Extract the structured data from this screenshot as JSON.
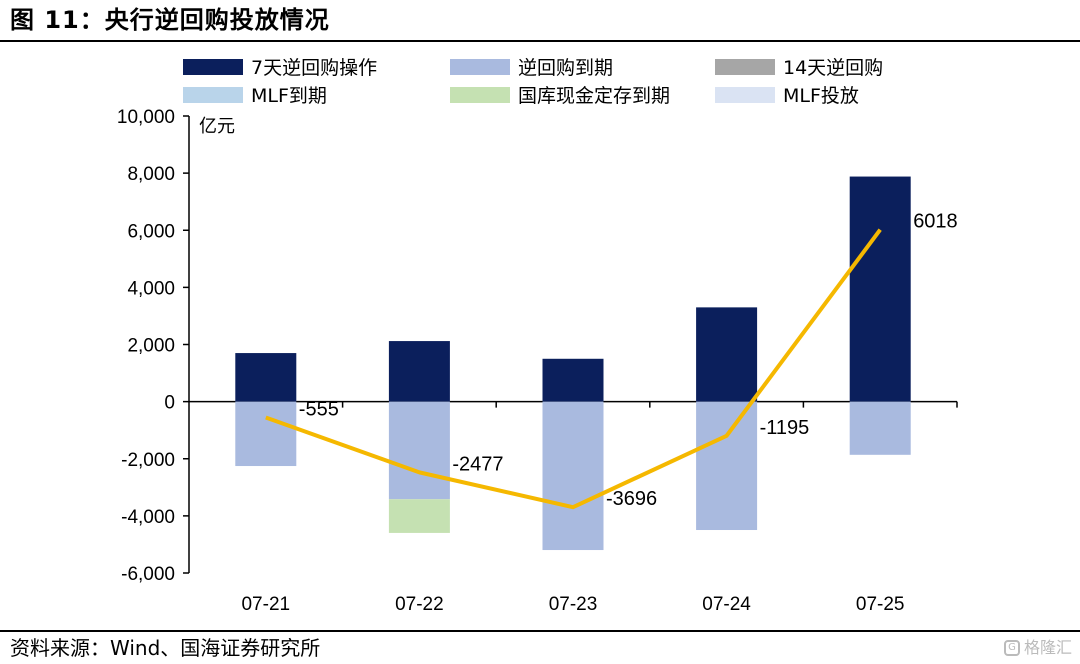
{
  "figure_title": "图 11：央行逆回购投放情况",
  "source_text": "资料来源：Wind、国海证券研究所",
  "watermark_text": "格隆汇",
  "colors": {
    "reverse_repo_7d": "#0b1f5c",
    "reverse_repo_maturity": "#a9badf",
    "reverse_repo_14d": "#a6a6a6",
    "mlf_maturity": "#b9d4ea",
    "treasury_deposit_maturity": "#c5e1b2",
    "mlf_injection": "#dae3f3",
    "net_line": "#f5b800"
  },
  "chart_data": {
    "type": "bar",
    "title": "",
    "xlabel": "",
    "ylabel": "亿元",
    "ylim": [
      -6000,
      10000
    ],
    "yticks": [
      10000,
      8000,
      6000,
      4000,
      2000,
      0,
      -2000,
      -4000,
      -6000
    ],
    "ytick_labels": [
      "10,000",
      "8,000",
      "6,000",
      "4,000",
      "2,000",
      "0",
      "-2,000",
      "-4,000",
      "-6,000"
    ],
    "categories": [
      "07-21",
      "07-22",
      "07-23",
      "07-24",
      "07-25"
    ],
    "stacked": true,
    "grid": false,
    "legend_position": "top",
    "series": [
      {
        "name": "7天逆回购操作",
        "kind": "bar",
        "color_key": "reverse_repo_7d",
        "values": [
          1700,
          2120,
          1500,
          3300,
          7880
        ]
      },
      {
        "name": "逆回购到期",
        "kind": "bar",
        "color_key": "reverse_repo_maturity",
        "values": [
          -2255,
          -3417,
          -5196,
          -4495,
          -1862
        ]
      },
      {
        "name": "14天逆回购",
        "kind": "bar",
        "color_key": "reverse_repo_14d",
        "values": [
          0,
          0,
          0,
          0,
          0
        ]
      },
      {
        "name": "MLF到期",
        "kind": "bar",
        "color_key": "mlf_maturity",
        "values": [
          0,
          0,
          0,
          0,
          0
        ]
      },
      {
        "name": "国库现金定存到期",
        "kind": "bar",
        "color_key": "treasury_deposit_maturity",
        "values": [
          0,
          -1180,
          0,
          0,
          0
        ]
      },
      {
        "name": "MLF投放",
        "kind": "bar",
        "color_key": "mlf_injection",
        "values": [
          0,
          0,
          0,
          0,
          0
        ]
      }
    ],
    "net_line": {
      "color_key": "net_line",
      "values": [
        -555,
        -2477,
        -3696,
        -1195,
        6018
      ],
      "labels": [
        "-555",
        "-2477",
        "-3696",
        "-1195",
        "6018"
      ]
    }
  }
}
